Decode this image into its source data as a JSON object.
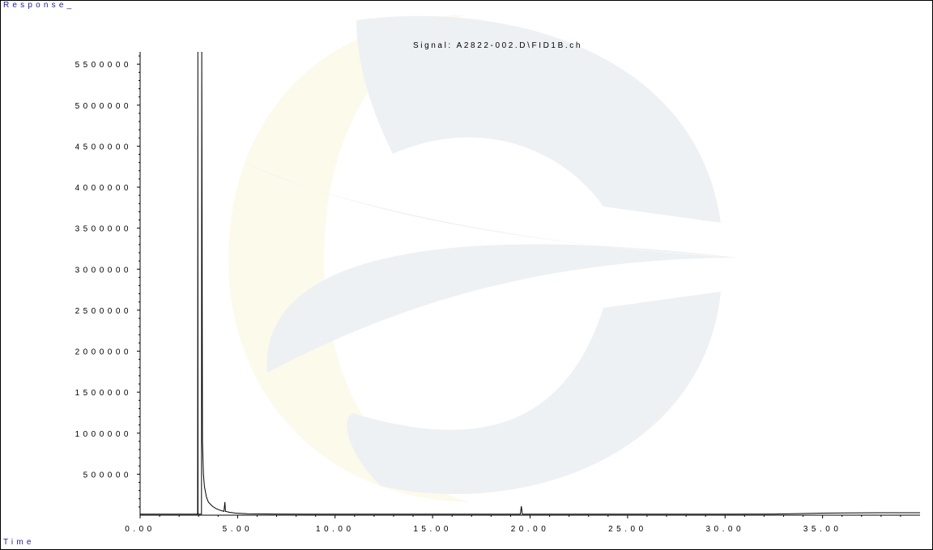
{
  "chart_data": {
    "type": "line",
    "title": "Signal: A2822-002.D\\FID1B.ch",
    "ylabel": "Response_",
    "xlabel": "Time",
    "xlim": [
      0,
      40
    ],
    "ylim": [
      0,
      5650000
    ],
    "x_ticks": [
      "0.00",
      "5.00",
      "10.00",
      "15.00",
      "20.00",
      "25.00",
      "30.00",
      "35.00"
    ],
    "x_tick_values": [
      0,
      5,
      10,
      15,
      20,
      25,
      30,
      35
    ],
    "y_ticks": [
      "500000",
      "1000000",
      "1500000",
      "2000000",
      "2500000",
      "3000000",
      "3500000",
      "4000000",
      "4500000",
      "5000000",
      "5500000"
    ],
    "y_tick_values": [
      500000,
      1000000,
      1500000,
      2000000,
      2500000,
      3000000,
      3500000,
      4000000,
      4500000,
      5000000,
      5500000
    ],
    "grid": false,
    "series": [
      {
        "values": [
          [
            0.0,
            12000
          ],
          [
            2.9,
            12000
          ],
          [
            2.95,
            12000
          ],
          [
            2.96,
            5650000
          ],
          [
            2.97,
            12000
          ],
          [
            3.15,
            12000
          ],
          [
            3.16,
            5650000
          ],
          [
            3.2,
            900000
          ],
          [
            3.25,
            500000
          ],
          [
            3.3,
            350000
          ],
          [
            3.4,
            220000
          ],
          [
            3.5,
            160000
          ],
          [
            3.7,
            110000
          ],
          [
            3.9,
            80000
          ],
          [
            4.1,
            60000
          ],
          [
            4.3,
            45000
          ],
          [
            4.35,
            160000
          ],
          [
            4.38,
            45000
          ],
          [
            4.6,
            35000
          ],
          [
            4.9,
            25000
          ],
          [
            5.5,
            18000
          ],
          [
            7.0,
            14000
          ],
          [
            10.0,
            12000
          ],
          [
            15.0,
            12000
          ],
          [
            19.5,
            12000
          ],
          [
            19.55,
            110000
          ],
          [
            19.6,
            12000
          ],
          [
            25.0,
            12000
          ],
          [
            30.0,
            12000
          ],
          [
            32.5,
            14000
          ],
          [
            34.0,
            20000
          ],
          [
            35.0,
            25000
          ],
          [
            36.0,
            28000
          ],
          [
            38.0,
            30000
          ],
          [
            40.0,
            30000
          ]
        ],
        "color": "#000000"
      }
    ]
  },
  "watermark_colors": {
    "gray_blue": "#eef1f4",
    "yellow": "#fcfaea"
  }
}
